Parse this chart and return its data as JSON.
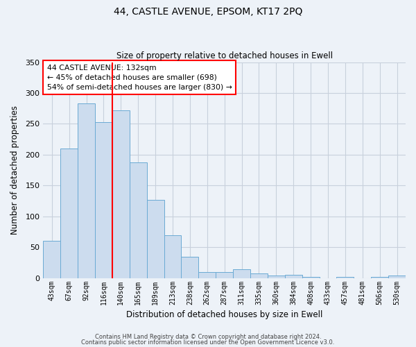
{
  "title": "44, CASTLE AVENUE, EPSOM, KT17 2PQ",
  "subtitle": "Size of property relative to detached houses in Ewell",
  "xlabel": "Distribution of detached houses by size in Ewell",
  "ylabel": "Number of detached properties",
  "categories": [
    "43sqm",
    "67sqm",
    "92sqm",
    "116sqm",
    "140sqm",
    "165sqm",
    "189sqm",
    "213sqm",
    "238sqm",
    "262sqm",
    "287sqm",
    "311sqm",
    "335sqm",
    "360sqm",
    "384sqm",
    "408sqm",
    "433sqm",
    "457sqm",
    "481sqm",
    "506sqm",
    "530sqm"
  ],
  "values": [
    60,
    210,
    283,
    253,
    272,
    188,
    127,
    69,
    35,
    10,
    10,
    14,
    7,
    4,
    5,
    2,
    0,
    2,
    0,
    2,
    4
  ],
  "bar_color": "#ccdcee",
  "bar_edge_color": "#6aaad4",
  "bar_width": 1.0,
  "grid_color": "#c8d0dc",
  "bg_color": "#edf2f8",
  "red_line_x": 3.5,
  "annotation_line_color": "red",
  "annotation_box_text": "44 CASTLE AVENUE: 132sqm\n← 45% of detached houses are smaller (698)\n54% of semi-detached houses are larger (830) →",
  "ylim": [
    0,
    350
  ],
  "yticks": [
    0,
    50,
    100,
    150,
    200,
    250,
    300,
    350
  ],
  "footer_line1": "Contains HM Land Registry data © Crown copyright and database right 2024.",
  "footer_line2": "Contains public sector information licensed under the Open Government Licence v3.0."
}
